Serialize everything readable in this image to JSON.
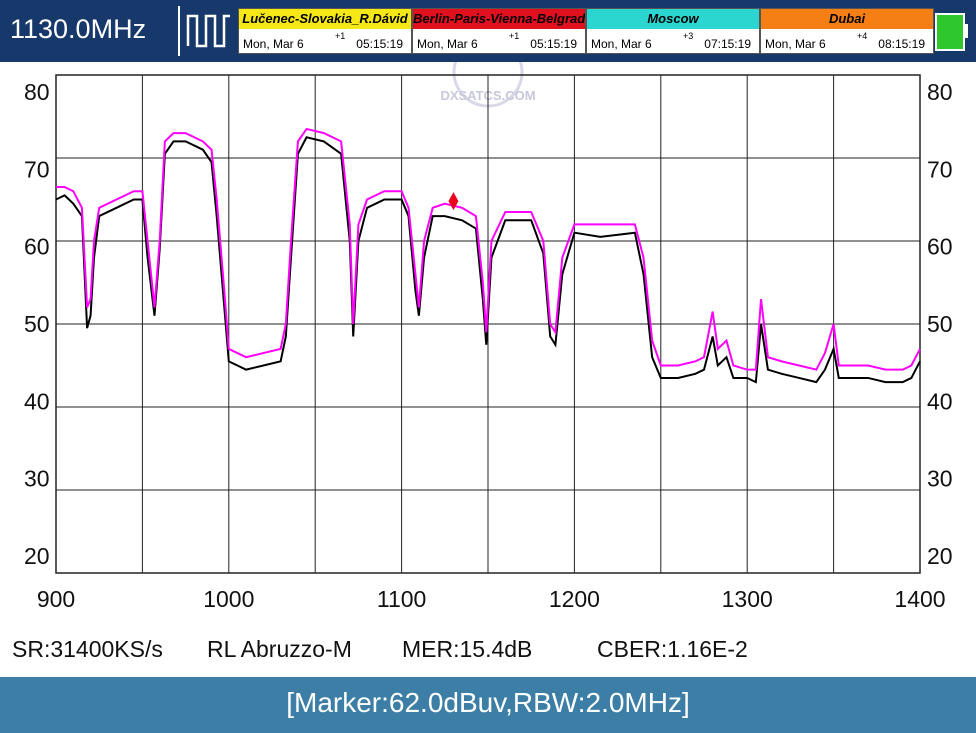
{
  "header": {
    "frequency": "1130.0MHz",
    "clocks": [
      {
        "city": "Lučenec-Slovakia_R.Dávid",
        "date": "Mon, Mar 6",
        "offset": "+1",
        "time": "05:15:19",
        "color": "#f5e816"
      },
      {
        "city": "Berlin-Paris-Vienna-Belgrade",
        "date": "Mon, Mar 6",
        "offset": "+1",
        "time": "05:15:19",
        "color": "#e0101e"
      },
      {
        "city": "Moscow",
        "date": "Mon, Mar 6",
        "offset": "+3",
        "time": "07:15:19",
        "color": "#2cd6d0"
      },
      {
        "city": "Dubai",
        "date": "Mon, Mar 6",
        "offset": "+4",
        "time": "08:15:19",
        "color": "#f57f14"
      }
    ]
  },
  "watermark": "DXSATCS.COM",
  "chart_data": {
    "type": "line",
    "x": [
      900,
      905,
      910,
      915,
      918,
      920,
      922,
      925,
      935,
      945,
      950,
      953,
      957,
      960,
      963,
      968,
      975,
      985,
      990,
      993,
      997,
      1000,
      1005,
      1010,
      1020,
      1030,
      1033,
      1036,
      1040,
      1045,
      1055,
      1065,
      1070,
      1072,
      1075,
      1080,
      1090,
      1100,
      1104,
      1108,
      1110,
      1113,
      1118,
      1125,
      1135,
      1143,
      1147,
      1149,
      1152,
      1160,
      1175,
      1182,
      1186,
      1189,
      1193,
      1200,
      1215,
      1235,
      1240,
      1245,
      1250,
      1260,
      1270,
      1275,
      1280,
      1283,
      1288,
      1292,
      1300,
      1305,
      1308,
      1312,
      1320,
      1330,
      1340,
      1345,
      1350,
      1353,
      1360,
      1370,
      1380,
      1390,
      1395,
      1400
    ],
    "series": [
      {
        "name": "max",
        "color": "#ff00ff",
        "values": [
          66.5,
          66.5,
          66,
          64,
          52,
          53,
          60,
          64,
          65,
          66,
          66,
          60,
          52,
          60,
          72,
          73,
          73,
          72,
          71,
          65,
          55,
          47,
          46.5,
          46,
          46.5,
          47,
          50,
          60,
          72,
          73.5,
          73,
          72,
          62,
          50,
          62,
          65,
          66,
          66,
          64,
          56,
          52,
          60,
          64,
          64.5,
          64,
          63,
          55,
          49,
          60,
          63.5,
          63.5,
          60,
          50,
          49,
          58,
          62,
          62,
          62,
          58,
          48,
          45,
          45,
          45.5,
          46,
          51.5,
          47,
          48,
          45,
          44.5,
          44.5,
          53,
          46,
          45.5,
          45,
          44.5,
          46.5,
          50,
          45,
          45,
          45,
          44.5,
          44.5,
          45,
          47
        ]
      },
      {
        "name": "live",
        "color": "#000000",
        "values": [
          65,
          65.5,
          64.5,
          63,
          49.5,
          51,
          58,
          63,
          64,
          65,
          65,
          58,
          51,
          59,
          70.5,
          72,
          72,
          71,
          69.5,
          63,
          53,
          45.5,
          45,
          44.5,
          45,
          45.5,
          48.5,
          58,
          70.5,
          72.5,
          72,
          70.5,
          60,
          48.5,
          60,
          64,
          65,
          65,
          63,
          54,
          51,
          58,
          63,
          63,
          62.5,
          61.5,
          53,
          47.5,
          58,
          62.5,
          62.5,
          58.5,
          48.5,
          47.5,
          56,
          61,
          60.5,
          61,
          56,
          46,
          43.5,
          43.5,
          44,
          44.5,
          48.5,
          45,
          46,
          43.5,
          43.5,
          43,
          50,
          44.5,
          44,
          43.5,
          43,
          44.5,
          47,
          43.5,
          43.5,
          43.5,
          43,
          43,
          43.5,
          45.5
        ]
      }
    ],
    "marker": {
      "x": 1130,
      "y": 64.8,
      "color": "#e8001e"
    },
    "xlim": [
      900,
      1400
    ],
    "ylim": [
      20,
      80
    ],
    "xticks": [
      900,
      {
        "value": 950,
        "label": null
      },
      1000,
      {
        "value": 1050,
        "label": null
      },
      1100,
      {
        "value": 1150,
        "label": null
      },
      1200,
      {
        "value": 1250,
        "label": null
      },
      1300,
      {
        "value": 1350,
        "label": null
      },
      1400
    ],
    "yticks": [
      20,
      30,
      40,
      50,
      60,
      70,
      80
    ],
    "grid": true
  },
  "status": {
    "sr": "SR:31400KS/s",
    "satellite": "RL Abruzzo-M",
    "mer": "MER:15.4dB",
    "cber": "CBER:1.16E-2"
  },
  "footer": "[Marker:62.0dBuv,RBW:2.0MHz]"
}
